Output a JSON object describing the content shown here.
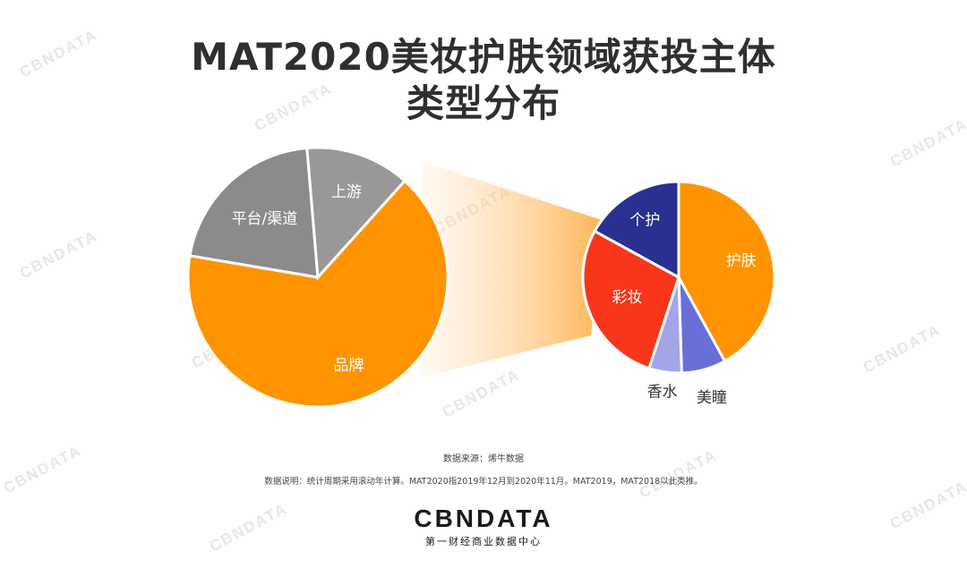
{
  "title_line1": "MAT2020美妆护肤领域获投主体",
  "title_line2": "类型分布",
  "colors": {
    "品牌": "#FF9300",
    "平台/渠道": "#8C8A8B",
    "上游": "#999798",
    "护肤": "#FF9300",
    "个护": "#2A3090",
    "彩妆": "#F8361C",
    "香水": "#A3A6E6",
    "美瞳": "#6A6FD8"
  },
  "chart_data": [
    {
      "type": "pie",
      "name": "investee-type",
      "title": "MAT2020美妆护肤领域获投主体类型分布",
      "categories": [
        "品牌",
        "平台/渠道",
        "上游"
      ],
      "values": [
        66,
        21,
        13
      ],
      "unit": "%"
    },
    {
      "type": "pie",
      "name": "brand-category",
      "categories": [
        "护肤",
        "美瞳",
        "香水",
        "彩妆",
        "个护"
      ],
      "values": [
        42,
        7.5,
        5.5,
        28,
        17
      ],
      "unit": "%"
    }
  ],
  "source": "数据来源：烯牛数据",
  "note": "数据说明：统计周期采用滚动年计算。MAT2020指2019年12月到2020年11月。MAT2019，MAT2018以此类推。",
  "watermark": "CBNDATA",
  "logo": {
    "brand": "CBNDATA",
    "tagline": "第一财经商业数据中心"
  }
}
